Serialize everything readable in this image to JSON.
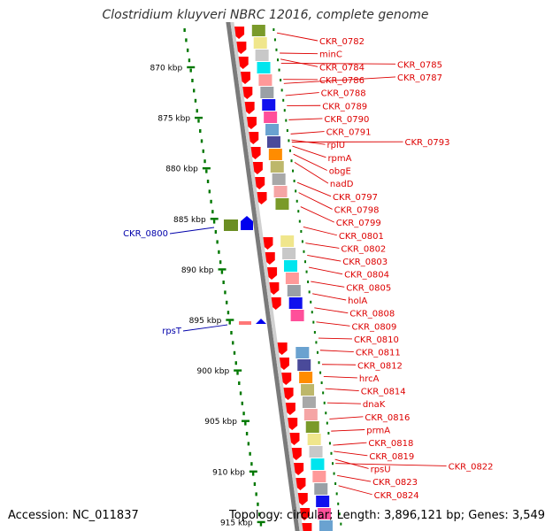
{
  "title": "Clostridium kluyveri NBRC 12016, complete genome",
  "footer": {
    "accession": "Accession: NC_011837",
    "summary": "Topology: circular; Length: 3,896,121 bp; Genes: 3,549"
  },
  "colors": {
    "feature_label": "#dd0000",
    "reverse_label": "#0000aa",
    "ruler_dots": "#007700",
    "backbone": "#888888",
    "cds_arrow": "#ff0000"
  },
  "ruler": {
    "ticks": [
      {
        "label": "870 kbp",
        "pos": 870
      },
      {
        "label": "875 kbp",
        "pos": 875
      },
      {
        "label": "880 kbp",
        "pos": 880
      },
      {
        "label": "885 kbp",
        "pos": 885
      },
      {
        "label": "890 kbp",
        "pos": 890
      },
      {
        "label": "895 kbp",
        "pos": 895
      },
      {
        "label": "900 kbp",
        "pos": 900
      },
      {
        "label": "905 kbp",
        "pos": 905
      },
      {
        "label": "910 kbp",
        "pos": 910
      },
      {
        "label": "915 kbp",
        "pos": 915
      }
    ]
  },
  "features_right": [
    {
      "label": "CKR_0782",
      "pos": 866.6
    },
    {
      "label": "minC",
      "pos": 868.6
    },
    {
      "label": "CKR_0784",
      "pos": 869.2
    },
    {
      "label": "CKR_0785",
      "pos": 869.6
    },
    {
      "label": "CKR_0786",
      "pos": 871.2
    },
    {
      "label": "CKR_0787",
      "pos": 871.6
    },
    {
      "label": "CKR_0788",
      "pos": 872.8
    },
    {
      "label": "CKR_0789",
      "pos": 873.8
    },
    {
      "label": "CKR_0790",
      "pos": 875.2
    },
    {
      "label": "CKR_0791",
      "pos": 876.6
    },
    {
      "label": "rplU",
      "pos": 877.2
    },
    {
      "label": "CKR_0793",
      "pos": 877.4
    },
    {
      "label": "rpmA",
      "pos": 877.8
    },
    {
      "label": "obgE",
      "pos": 878.6
    },
    {
      "label": "nadD",
      "pos": 879.4
    },
    {
      "label": "CKR_0797",
      "pos": 881.4
    },
    {
      "label": "CKR_0798",
      "pos": 882.4
    },
    {
      "label": "CKR_0799",
      "pos": 883.8
    },
    {
      "label": "CKR_0801",
      "pos": 885.8
    },
    {
      "label": "CKR_0802",
      "pos": 887.4
    },
    {
      "label": "CKR_0803",
      "pos": 888.6
    },
    {
      "label": "CKR_0804",
      "pos": 889.8
    },
    {
      "label": "CKR_0805",
      "pos": 891.2
    },
    {
      "label": "holA",
      "pos": 892.4
    },
    {
      "label": "CKR_0808",
      "pos": 893.8
    },
    {
      "label": "CKR_0809",
      "pos": 895.2
    },
    {
      "label": "CKR_0810",
      "pos": 896.8
    },
    {
      "label": "CKR_0811",
      "pos": 898.0
    },
    {
      "label": "CKR_0812",
      "pos": 899.4
    },
    {
      "label": "hrcA",
      "pos": 900.6
    },
    {
      "label": "CKR_0814",
      "pos": 901.8
    },
    {
      "label": "dnaK",
      "pos": 903.2
    },
    {
      "label": "CKR_0816",
      "pos": 904.8
    },
    {
      "label": "prmA",
      "pos": 906.0
    },
    {
      "label": "CKR_0818",
      "pos": 907.4
    },
    {
      "label": "CKR_0819",
      "pos": 908.0
    },
    {
      "label": "rpsU",
      "pos": 908.8
    },
    {
      "label": "CKR_0822",
      "pos": 909.2
    },
    {
      "label": "CKR_0823",
      "pos": 910.4
    },
    {
      "label": "CKR_0824",
      "pos": 911.4
    }
  ],
  "features_left": [
    {
      "label": "CKR_0800",
      "pos": 885.3
    },
    {
      "label": "rpsT",
      "pos": 895.2
    }
  ]
}
